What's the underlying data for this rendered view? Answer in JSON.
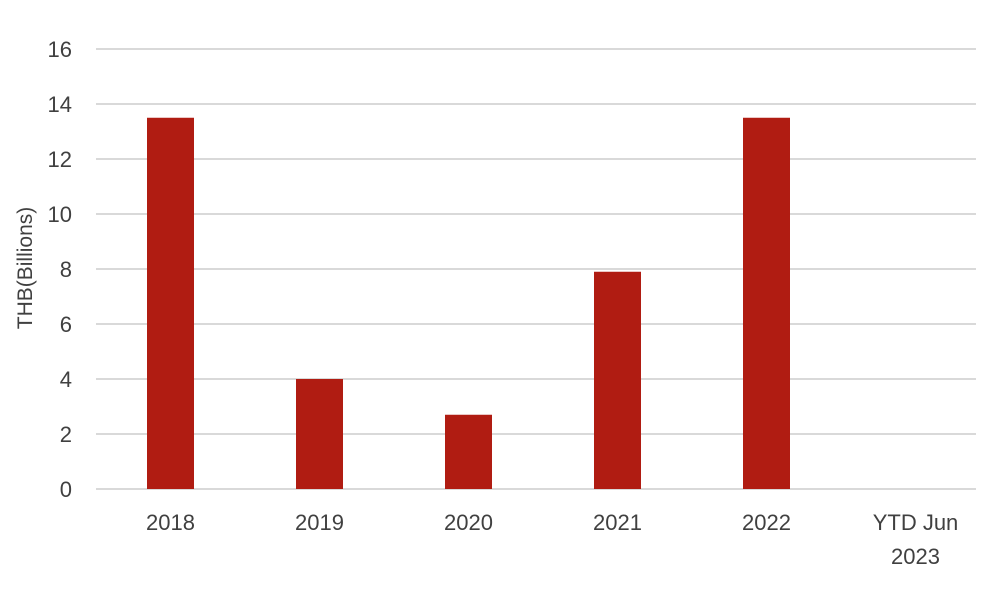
{
  "chart_data": {
    "type": "bar",
    "categories": [
      "2018",
      "2019",
      "2020",
      "2021",
      "2022",
      "YTD Jun 2023"
    ],
    "category_lines": [
      [
        "2018"
      ],
      [
        "2019"
      ],
      [
        "2020"
      ],
      [
        "2021"
      ],
      [
        "2022"
      ],
      [
        "YTD Jun",
        "2023"
      ]
    ],
    "values": [
      13.5,
      4.0,
      2.7,
      7.9,
      13.5,
      0
    ],
    "title": "",
    "xlabel": "",
    "ylabel": "THB(Billions)",
    "ylim": [
      0,
      16
    ],
    "yticks": [
      0,
      2,
      4,
      6,
      8,
      10,
      12,
      14,
      16
    ],
    "grid": true,
    "legend": "none",
    "bar_color": "#B01C12",
    "grid_color": "#D9D9D9",
    "text_color": "#404040"
  }
}
